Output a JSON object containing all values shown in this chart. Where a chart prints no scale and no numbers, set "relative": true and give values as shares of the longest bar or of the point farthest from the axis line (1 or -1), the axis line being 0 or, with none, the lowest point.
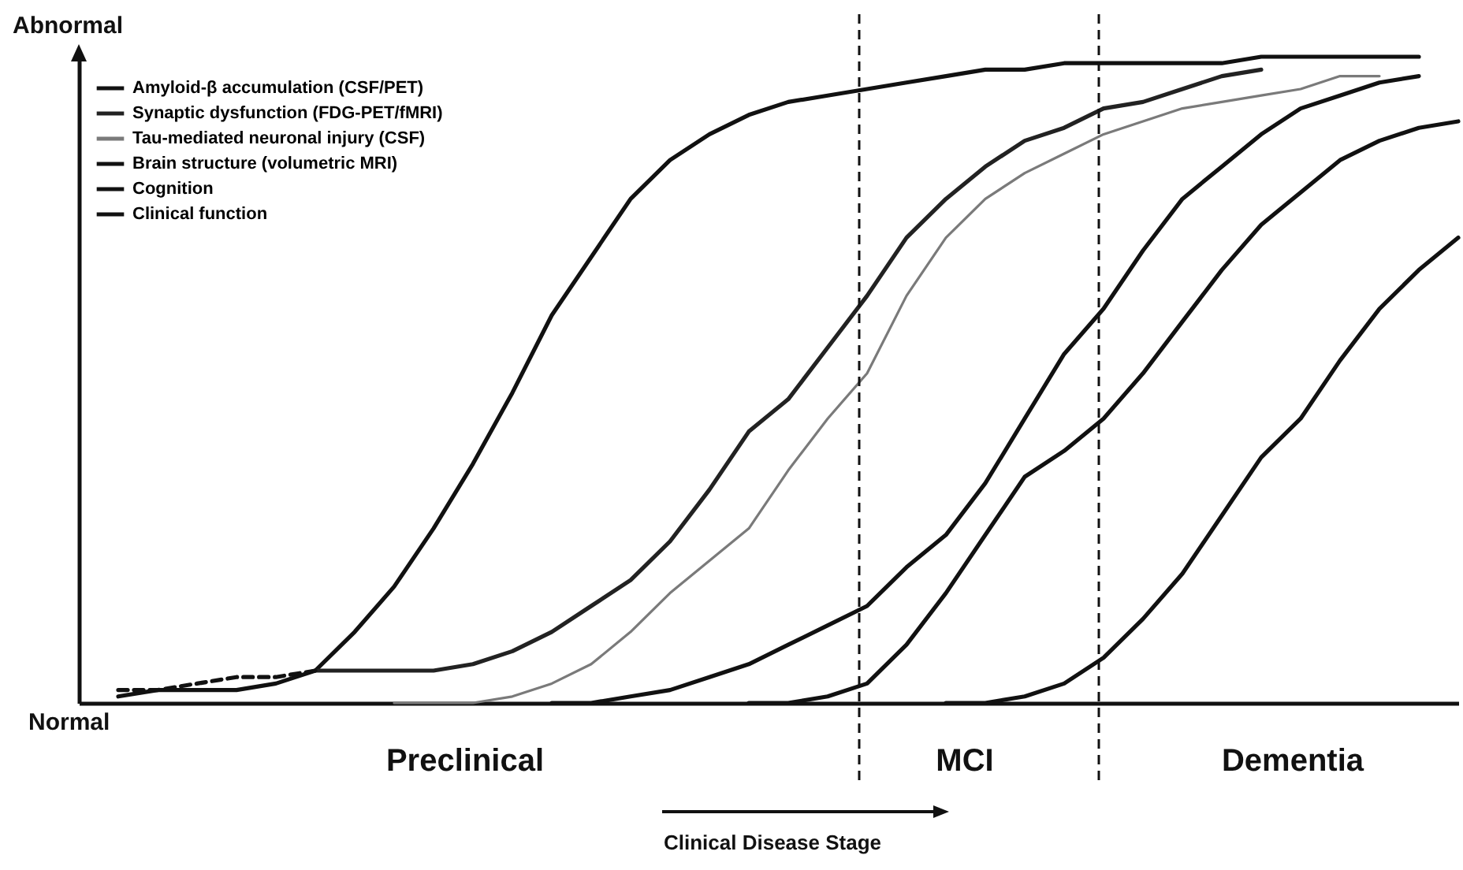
{
  "chart_data": {
    "type": "line",
    "relative": true,
    "legend": "top left",
    "marker": "none",
    "categories": [
      null,
      null,
      null,
      null,
      null,
      null,
      null,
      null,
      null,
      null,
      null,
      null,
      null,
      null,
      null,
      null,
      null,
      null,
      null,
      null,
      null,
      null,
      null,
      null,
      null,
      null,
      null,
      null,
      null,
      null,
      null,
      null,
      null,
      null,
      null,
      null
    ],
    "series": [
      {
        "name": "Amyloid-β accumulation (CSF/PET)",
        "color": "#111111",
        "values": [
          null,
          0.01,
          0.02,
          0.02,
          0.02,
          0.03,
          0.05,
          0.11,
          0.18,
          0.27,
          0.37,
          0.48,
          0.6,
          0.69,
          0.78,
          0.84,
          0.88,
          0.91,
          0.93,
          0.94,
          0.95,
          0.96,
          0.97,
          0.98,
          0.98,
          0.99,
          0.99,
          0.99,
          0.99,
          0.99,
          1,
          1,
          1,
          1,
          1,
          null
        ]
      },
      {
        "name": "Synaptic dysfunction (FDG-PET/fMRI)",
        "color": "#222222",
        "values": [
          null,
          null,
          null,
          null,
          null,
          null,
          0.05,
          0.05,
          0.05,
          0.05,
          0.06,
          0.08,
          0.11,
          0.15,
          0.19,
          0.25,
          0.33,
          0.42,
          0.47,
          0.55,
          0.63,
          0.72,
          0.78,
          0.83,
          0.87,
          0.89,
          0.92,
          0.93,
          0.95,
          0.97,
          0.98,
          null,
          null,
          null,
          null,
          null
        ]
      },
      {
        "name": "Tau-mediated neuronal injury (CSF)",
        "color": "#7a7a7a",
        "values": [
          null,
          null,
          null,
          null,
          null,
          null,
          null,
          null,
          0,
          0,
          0,
          0.01,
          0.03,
          0.06,
          0.11,
          0.17,
          0.22,
          0.27,
          0.36,
          0.44,
          0.51,
          0.63,
          0.72,
          0.78,
          0.82,
          0.85,
          0.88,
          0.9,
          0.92,
          0.93,
          0.94,
          0.95,
          0.97,
          0.97,
          null,
          null
        ]
      },
      {
        "name": "Brain structure (volumetric MRI)",
        "color": "#111111",
        "values": [
          null,
          null,
          null,
          null,
          null,
          null,
          null,
          null,
          null,
          null,
          null,
          null,
          0,
          0,
          0.01,
          0.02,
          0.04,
          0.06,
          0.09,
          0.12,
          0.15,
          0.21,
          0.26,
          0.34,
          0.44,
          0.54,
          0.61,
          0.7,
          0.78,
          0.83,
          0.88,
          0.92,
          0.94,
          0.96,
          0.97,
          null
        ]
      },
      {
        "name": "Cognition",
        "color": "#111111",
        "values": [
          null,
          null,
          null,
          null,
          null,
          null,
          null,
          null,
          null,
          null,
          null,
          null,
          null,
          null,
          null,
          null,
          null,
          0,
          0,
          0.01,
          0.03,
          0.09,
          0.17,
          0.26,
          0.35,
          0.39,
          0.44,
          0.51,
          0.59,
          0.67,
          0.74,
          0.79,
          0.84,
          0.87,
          0.89,
          0.9
        ]
      },
      {
        "name": "Clinical function",
        "color": "#111111",
        "values": [
          null,
          null,
          null,
          null,
          null,
          null,
          null,
          null,
          null,
          null,
          null,
          null,
          null,
          null,
          null,
          null,
          null,
          null,
          null,
          null,
          null,
          null,
          0,
          0,
          0.01,
          0.03,
          0.07,
          0.13,
          0.2,
          0.29,
          0.38,
          0.44,
          0.53,
          0.61,
          0.67,
          0.72
        ]
      },
      {
        "color": "#111111",
        "line_style": "dashed",
        "values": [
          null,
          0.02,
          0.02,
          0.03,
          0.04,
          0.04,
          0.05,
          null,
          null,
          null,
          null,
          null,
          null,
          null,
          null,
          null,
          null,
          null,
          null,
          null,
          null,
          null,
          null,
          null,
          null,
          null,
          null,
          null,
          null,
          null,
          null,
          null,
          null,
          null,
          null,
          null
        ]
      }
    ],
    "annotations": [
      "Abnormal",
      "Normal",
      "Preclinical",
      "MCI",
      "Dementia",
      "Clinical Disease Stage"
    ]
  }
}
